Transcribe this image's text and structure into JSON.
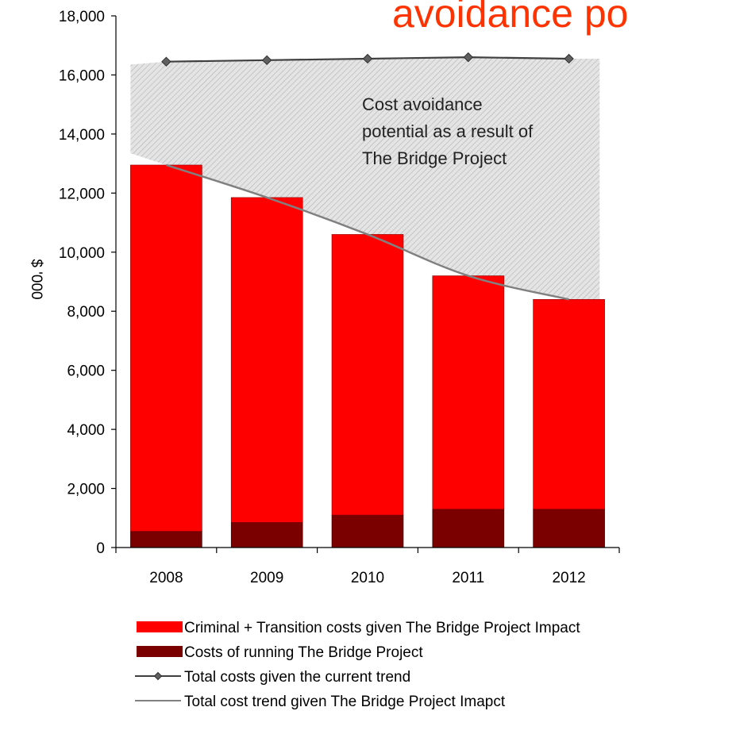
{
  "chart_data": {
    "type": "bar",
    "title": "avoidance po",
    "ylabel": "$ '000",
    "xlabel": "",
    "ylim": [
      0,
      18000
    ],
    "y_ticks": [
      {
        "value": 0,
        "label": "0"
      },
      {
        "value": 2000,
        "label": "2,000"
      },
      {
        "value": 4000,
        "label": "4,000"
      },
      {
        "value": 6000,
        "label": "6,000"
      },
      {
        "value": 8000,
        "label": "8,000"
      },
      {
        "value": 10000,
        "label": "10,000"
      },
      {
        "value": 12000,
        "label": "12,000"
      },
      {
        "value": 14000,
        "label": "14,000"
      },
      {
        "value": 16000,
        "label": "16,000"
      },
      {
        "value": 18000,
        "label": "18,000"
      }
    ],
    "categories": [
      "2008",
      "2009",
      "2010",
      "2011",
      "2012"
    ],
    "stacked": true,
    "series": [
      {
        "name": "Costs of running The Bridge Project",
        "type": "bar",
        "color": "#7a0000",
        "values": [
          550,
          850,
          1100,
          1300,
          1300
        ]
      },
      {
        "name": "Criminal + Transition costs given The Bridge Project Impact",
        "type": "bar",
        "color": "#ff0000",
        "values": [
          12400,
          11000,
          9500,
          7900,
          7100
        ]
      },
      {
        "name": "Total costs given the current trend",
        "type": "line",
        "marker": "diamond",
        "color": "#404040",
        "values": [
          16450,
          16500,
          16550,
          16600,
          16550
        ]
      },
      {
        "name": "Total cost trend given The Bridge Project Imapct",
        "type": "line",
        "color": "#808080",
        "values": [
          12950,
          11850,
          10600,
          9200,
          8400
        ]
      }
    ],
    "annotation": "Cost avoidance\npotential as a result of\nThe Bridge Project",
    "legend": {
      "placement": "bottom",
      "entries": [
        "Criminal + Transition costs given The Bridge Project Impact",
        "Costs of running The Bridge Project",
        "Total costs given the current trend",
        "Total cost trend given The Bridge Project Imapct"
      ]
    },
    "grid": false
  }
}
